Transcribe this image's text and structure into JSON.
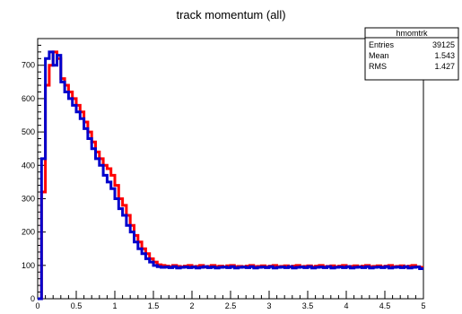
{
  "chart_data": {
    "type": "line",
    "title": "track momentum (all)",
    "xlabel": "",
    "ylabel": "",
    "xlim": [
      0,
      5
    ],
    "ylim": [
      0,
      780
    ],
    "x_ticks": [
      "0",
      "0.5",
      "1",
      "1.5",
      "2",
      "2.5",
      "3",
      "3.5",
      "4",
      "4.5",
      "5"
    ],
    "y_ticks": [
      "0",
      "100",
      "200",
      "300",
      "400",
      "500",
      "600",
      "700"
    ],
    "y_tick_values": [
      0,
      100,
      200,
      300,
      400,
      500,
      600,
      700
    ],
    "grid": false,
    "x": [
      0.0,
      0.05,
      0.1,
      0.15,
      0.2,
      0.25,
      0.3,
      0.35,
      0.4,
      0.45,
      0.5,
      0.55,
      0.6,
      0.65,
      0.7,
      0.75,
      0.8,
      0.85,
      0.9,
      0.95,
      1.0,
      1.05,
      1.1,
      1.15,
      1.2,
      1.25,
      1.3,
      1.35,
      1.4,
      1.45,
      1.5,
      1.55,
      1.6,
      1.65,
      1.7,
      1.75,
      1.8,
      1.85,
      1.9,
      1.95,
      2.0,
      2.05,
      2.1,
      2.15,
      2.2,
      2.25,
      2.3,
      2.35,
      2.4,
      2.45,
      2.5,
      2.55,
      2.6,
      2.65,
      2.7,
      2.75,
      2.8,
      2.85,
      2.9,
      2.95,
      3.0,
      3.05,
      3.1,
      3.15,
      3.2,
      3.25,
      3.3,
      3.35,
      3.4,
      3.45,
      3.5,
      3.55,
      3.6,
      3.65,
      3.7,
      3.75,
      3.8,
      3.85,
      3.9,
      3.95,
      4.0,
      4.05,
      4.1,
      4.15,
      4.2,
      4.25,
      4.3,
      4.35,
      4.4,
      4.45,
      4.5,
      4.55,
      4.6,
      4.65,
      4.7,
      4.75,
      4.8,
      4.85,
      4.9,
      4.95
    ],
    "series": [
      {
        "color": "#ff0000",
        "values": [
          0,
          320,
          640,
          700,
          740,
          720,
          660,
          640,
          620,
          600,
          580,
          560,
          530,
          500,
          470,
          440,
          420,
          400,
          390,
          370,
          340,
          300,
          280,
          250,
          220,
          190,
          170,
          150,
          135,
          120,
          110,
          102,
          100,
          98,
          96,
          100,
          97,
          95,
          98,
          100,
          96,
          97,
          100,
          95,
          97,
          100,
          96,
          98,
          95,
          99,
          100,
          96,
          97,
          95,
          98,
          100,
          96,
          97,
          99,
          95,
          98,
          100,
          96,
          97,
          99,
          95,
          98,
          100,
          96,
          97,
          99,
          95,
          98,
          100,
          96,
          97,
          99,
          95,
          98,
          100,
          96,
          97,
          99,
          95,
          98,
          100,
          96,
          97,
          99,
          95,
          98,
          100,
          96,
          97,
          99,
          95,
          98,
          100,
          96,
          94
        ]
      },
      {
        "color": "#0000cc",
        "values": [
          0,
          420,
          720,
          740,
          700,
          730,
          650,
          620,
          600,
          580,
          560,
          540,
          510,
          480,
          450,
          420,
          400,
          370,
          350,
          330,
          300,
          270,
          250,
          220,
          200,
          170,
          150,
          135,
          120,
          110,
          100,
          96,
          94,
          95,
          93,
          96,
          92,
          94,
          95,
          93,
          95,
          92,
          94,
          96,
          93,
          95,
          92,
          94,
          95,
          93,
          96,
          92,
          94,
          95,
          93,
          96,
          92,
          94,
          95,
          93,
          96,
          92,
          94,
          95,
          93,
          96,
          92,
          94,
          95,
          93,
          96,
          92,
          94,
          95,
          93,
          96,
          92,
          94,
          95,
          93,
          96,
          92,
          94,
          95,
          93,
          96,
          92,
          94,
          95,
          93,
          96,
          92,
          94,
          95,
          93,
          96,
          92,
          94,
          95,
          90
        ]
      }
    ],
    "stats": {
      "name": "hmomtrk",
      "rows": [
        {
          "label": "Entries",
          "value": "39125"
        },
        {
          "label": "Mean",
          "value": "1.543"
        },
        {
          "label": "RMS",
          "value": "1.427"
        }
      ]
    }
  }
}
